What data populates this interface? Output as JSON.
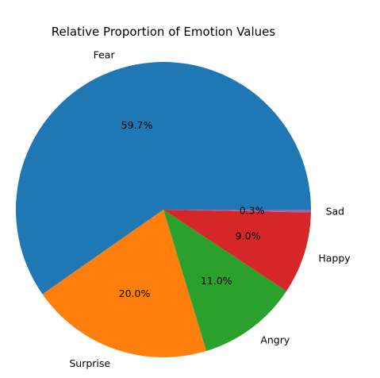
{
  "chart_data": {
    "type": "pie",
    "title": "Relative Proportion of Emotion Values",
    "categories": [
      "Fear",
      "Surprise",
      "Angry",
      "Happy",
      "Sad"
    ],
    "values": [
      59.7,
      20.0,
      11.0,
      9.0,
      0.3
    ],
    "percent_labels": [
      "59.7%",
      "20.0%",
      "11.0%",
      "9.0%",
      "0.3%"
    ],
    "colors": [
      "#1f77b4",
      "#ff7f0e",
      "#2ca02c",
      "#d62728",
      "#9467bd"
    ],
    "start_angle_deg": 0,
    "direction": "counterclockwise",
    "legend": "none"
  }
}
